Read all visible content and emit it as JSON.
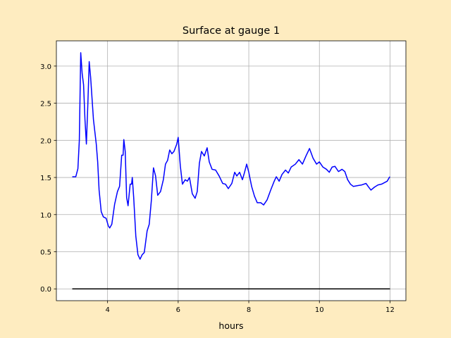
{
  "chart_data": {
    "type": "line",
    "title": "Surface at gauge 1",
    "x_label": "hours",
    "xlim": [
      2.55,
      12.45
    ],
    "ylim": [
      -0.159,
      3.34
    ],
    "xticks": [
      4,
      6,
      8,
      10,
      12
    ],
    "yticks": [
      {
        "value": 0,
        "label": "0.0"
      },
      0.5,
      {
        "value": 1,
        "label": "1.0"
      },
      1.5,
      {
        "value": 2,
        "label": "2.0"
      },
      2.5,
      {
        "value": 3,
        "label": "3.0"
      }
    ],
    "grid": true,
    "series": [
      {
        "color": "#0000ff",
        "x": [
          3.0,
          3.1,
          3.16,
          3.2,
          3.24,
          3.28,
          3.32,
          3.36,
          3.4,
          3.44,
          3.48,
          3.52,
          3.6,
          3.68,
          3.72,
          3.76,
          3.82,
          3.88,
          3.96,
          4.02,
          4.06,
          4.12,
          4.2,
          4.28,
          4.34,
          4.4,
          4.44,
          4.46,
          4.5,
          4.54,
          4.58,
          4.64,
          4.68,
          4.7,
          4.74,
          4.8,
          4.86,
          4.92,
          4.98,
          5.04,
          5.12,
          5.18,
          5.24,
          5.3,
          5.36,
          5.42,
          5.5,
          5.58,
          5.64,
          5.7,
          5.76,
          5.82,
          5.88,
          5.96,
          6.0,
          6.06,
          6.12,
          6.2,
          6.26,
          6.32,
          6.4,
          6.48,
          6.54,
          6.6,
          6.66,
          6.74,
          6.82,
          6.88,
          6.96,
          7.06,
          7.16,
          7.26,
          7.34,
          7.42,
          7.52,
          7.6,
          7.66,
          7.74,
          7.82,
          7.88,
          7.94,
          8.0,
          8.08,
          8.16,
          8.24,
          8.34,
          8.42,
          8.52,
          8.62,
          8.72,
          8.78,
          8.86,
          8.94,
          9.04,
          9.12,
          9.2,
          9.32,
          9.42,
          9.52,
          9.62,
          9.72,
          9.82,
          9.92,
          10.0,
          10.1,
          10.2,
          10.28,
          10.36,
          10.44,
          10.54,
          10.64,
          10.72,
          10.8,
          10.88,
          10.96,
          11.08,
          11.2,
          11.32,
          11.38,
          11.46,
          11.56,
          11.66,
          11.76,
          11.84,
          11.92,
          11.98,
          12.0
        ],
        "values": [
          1.51,
          1.51,
          1.62,
          2.0,
          3.18,
          2.9,
          2.75,
          2.28,
          1.95,
          2.47,
          3.06,
          2.85,
          2.28,
          1.95,
          1.71,
          1.33,
          1.04,
          0.97,
          0.95,
          0.85,
          0.82,
          0.87,
          1.14,
          1.31,
          1.38,
          1.8,
          1.8,
          2.01,
          1.85,
          1.23,
          1.12,
          1.41,
          1.41,
          1.5,
          1.23,
          0.71,
          0.46,
          0.4,
          0.46,
          0.49,
          0.78,
          0.87,
          1.19,
          1.63,
          1.52,
          1.26,
          1.31,
          1.47,
          1.68,
          1.73,
          1.87,
          1.82,
          1.85,
          1.95,
          2.04,
          1.66,
          1.41,
          1.47,
          1.45,
          1.5,
          1.28,
          1.22,
          1.31,
          1.69,
          1.85,
          1.79,
          1.9,
          1.71,
          1.61,
          1.6,
          1.52,
          1.42,
          1.41,
          1.35,
          1.42,
          1.57,
          1.52,
          1.57,
          1.47,
          1.57,
          1.68,
          1.57,
          1.38,
          1.25,
          1.16,
          1.16,
          1.13,
          1.2,
          1.33,
          1.45,
          1.51,
          1.45,
          1.54,
          1.6,
          1.56,
          1.64,
          1.68,
          1.74,
          1.68,
          1.79,
          1.89,
          1.76,
          1.68,
          1.71,
          1.64,
          1.61,
          1.57,
          1.64,
          1.65,
          1.58,
          1.61,
          1.58,
          1.47,
          1.41,
          1.38,
          1.39,
          1.4,
          1.42,
          1.38,
          1.33,
          1.37,
          1.4,
          1.41,
          1.43,
          1.45,
          1.5,
          1.51
        ]
      },
      {
        "color": "#000000",
        "x": [
          3,
          12
        ],
        "values": [
          0,
          0
        ]
      }
    ]
  }
}
